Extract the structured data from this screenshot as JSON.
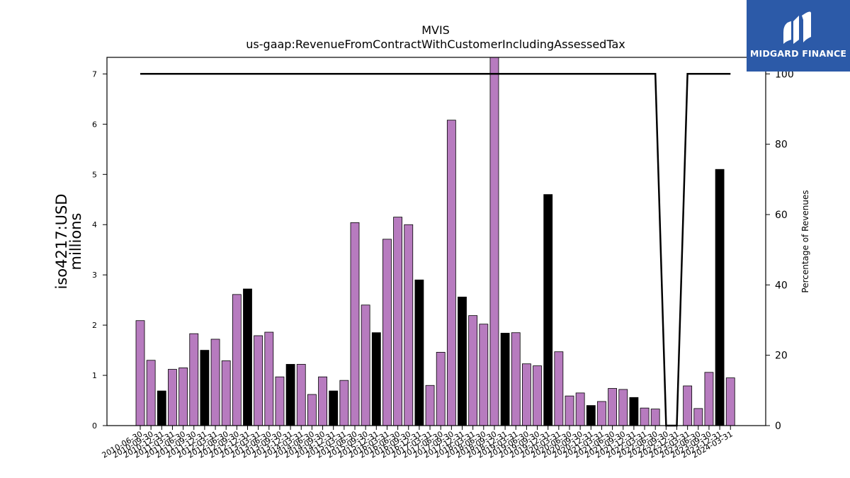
{
  "chart_data": {
    "type": "bar",
    "title": "MVIS",
    "subtitle": "us-gaap:RevenueFromContractWithCustomerIncludingAssessedTax",
    "ylabel": "iso4217:USD",
    "ylabel2": "millions",
    "y2label": "Percentage of Revenues",
    "ylim": [
      0,
      7.33
    ],
    "y2lim": [
      0,
      104.7
    ],
    "yticks": [
      "0",
      "1",
      "2",
      "3",
      "4",
      "5",
      "6",
      "7"
    ],
    "y2ticks": [
      "0",
      "20",
      "40",
      "60",
      "80",
      "100"
    ],
    "grid": false,
    "colors": {
      "quarter_bar": "#b77bbf",
      "fy_bar": "#000000",
      "line": "#000000"
    },
    "categories": [
      "2010-06-30",
      "2010-09-30",
      "2010-12-31",
      "2011-03-31",
      "2011-06-30",
      "2011-09-30",
      "2011-12-31",
      "2012-03-31",
      "2012-06-30",
      "2012-09-30",
      "2012-12-31",
      "2013-03-31",
      "2013-06-30",
      "2013-09-30",
      "2013-12-31",
      "2014-03-31",
      "2014-06-30",
      "2014-09-30",
      "2014-12-31",
      "2015-03-31",
      "2015-06-30",
      "2015-09-30",
      "2015-12-31",
      "2016-03-31",
      "2016-06-30",
      "2016-09-30",
      "2016-12-31",
      "2017-03-31",
      "2017-06-30",
      "2017-09-30",
      "2017-12-31",
      "2018-03-31",
      "2018-06-30",
      "2018-09-30",
      "2018-12-31",
      "2019-03-31",
      "2019-06-30",
      "2019-09-30",
      "2019-12-31",
      "2020-03-31",
      "2020-06-30",
      "2020-09-30",
      "2020-12-31",
      "2021-03-31",
      "2021-06-30",
      "2021-09-30",
      "2021-12-31",
      "2022-03-31",
      "2022-06-30",
      "2022-09-30",
      "2022-12-31",
      "2023-03-31",
      "2023-06-30",
      "2023-09-30",
      "2023-12-31",
      "2024-03-31"
    ],
    "values": [
      2.09,
      1.3,
      0.69,
      1.12,
      1.15,
      1.83,
      1.5,
      1.72,
      1.29,
      2.61,
      2.72,
      1.79,
      1.86,
      0.97,
      1.22,
      1.22,
      0.62,
      0.97,
      0.69,
      0.9,
      4.04,
      2.4,
      1.85,
      3.71,
      4.15,
      4.0,
      2.9,
      0.8,
      1.46,
      6.08,
      2.56,
      2.19,
      2.02,
      7.33,
      1.84,
      1.85,
      1.23,
      1.19,
      4.6,
      1.47,
      0.59,
      0.65,
      0.4,
      0.48,
      0.74,
      0.72,
      0.56,
      0.35,
      0.33,
      0,
      0,
      0.79,
      0.34,
      1.06,
      5.1,
      0.95
    ],
    "fiscal_year_end": [
      false,
      false,
      true,
      false,
      false,
      false,
      true,
      false,
      false,
      false,
      true,
      false,
      false,
      false,
      true,
      false,
      false,
      false,
      true,
      false,
      false,
      false,
      true,
      false,
      false,
      false,
      true,
      false,
      false,
      false,
      true,
      false,
      false,
      false,
      true,
      false,
      false,
      false,
      true,
      false,
      false,
      false,
      true,
      false,
      false,
      false,
      true,
      false,
      false,
      false,
      true,
      false,
      false,
      false,
      true,
      false
    ],
    "line_pct": [
      100,
      100,
      100,
      100,
      100,
      100,
      100,
      100,
      100,
      100,
      100,
      100,
      100,
      100,
      100,
      100,
      100,
      100,
      100,
      100,
      100,
      100,
      100,
      100,
      100,
      100,
      100,
      100,
      100,
      100,
      100,
      100,
      100,
      100,
      100,
      100,
      100,
      100,
      100,
      100,
      100,
      100,
      100,
      100,
      100,
      100,
      100,
      100,
      100,
      0,
      0,
      100,
      100,
      100,
      100,
      100
    ]
  },
  "logo": {
    "text": "MIDGARD FINANCE"
  }
}
